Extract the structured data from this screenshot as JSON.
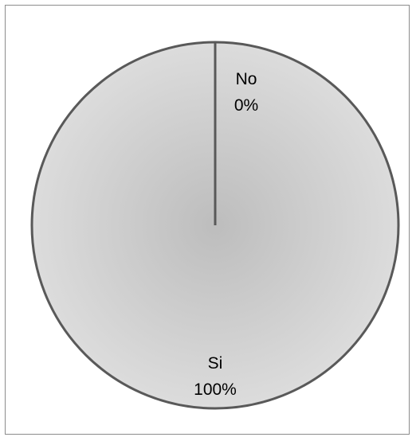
{
  "chart_data": {
    "type": "pie",
    "categories": [
      "No",
      "Si"
    ],
    "values": [
      0,
      100
    ],
    "data_labels": [
      {
        "category": "No",
        "percent": "0%"
      },
      {
        "category": "Si",
        "percent": "100%"
      }
    ],
    "colors": {
      "fill_center": "#bdbdbd",
      "fill_edge": "#dcdcdc",
      "stroke": "#595959"
    },
    "legend": "none"
  }
}
